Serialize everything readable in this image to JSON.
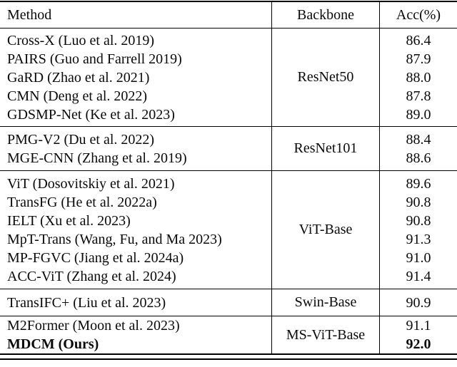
{
  "table": {
    "headers": {
      "method": "Method",
      "backbone": "Backbone",
      "acc": "Acc(%)"
    },
    "sections": [
      {
        "backbone": "ResNet50",
        "rows": [
          {
            "method": "Cross-X (Luo et al. 2019)",
            "acc": "86.4"
          },
          {
            "method": "PAIRS (Guo and Farrell 2019)",
            "acc": "87.9"
          },
          {
            "method": "GaRD (Zhao et al. 2021)",
            "acc": "88.0"
          },
          {
            "method": "CMN (Deng et al. 2022)",
            "acc": "87.8"
          },
          {
            "method": "GDSMP-Net (Ke et al. 2023)",
            "acc": "89.0"
          }
        ]
      },
      {
        "backbone": "ResNet101",
        "rows": [
          {
            "method": "PMG-V2 (Du et al. 2022)",
            "acc": "88.4"
          },
          {
            "method": "MGE-CNN (Zhang et al. 2019)",
            "acc": "88.6"
          }
        ]
      },
      {
        "backbone": "ViT-Base",
        "rows": [
          {
            "method": "ViT (Dosovitskiy et al. 2021)",
            "acc": "89.6"
          },
          {
            "method": "TransFG (He et al. 2022a)",
            "acc": "90.8"
          },
          {
            "method": "IELT (Xu et al. 2023)",
            "acc": "90.8"
          },
          {
            "method": "MpT-Trans (Wang, Fu, and Ma 2023)",
            "acc": "91.3"
          },
          {
            "method": "MP-FGVC (Jiang et al. 2024a)",
            "acc": "91.0"
          },
          {
            "method": "ACC-ViT (Zhang et al. 2024)",
            "acc": "91.4"
          }
        ]
      },
      {
        "backbone": "Swin-Base",
        "rows": [
          {
            "method": "TransIFC+ (Liu et al. 2023)",
            "acc": "90.9"
          }
        ]
      },
      {
        "backbone": "MS-ViT-Base",
        "rows": [
          {
            "method": "M2Former (Moon et al. 2023)",
            "acc": "91.1"
          },
          {
            "method": "MDCM (Ours)",
            "acc": "92.0",
            "bold": true
          }
        ]
      }
    ],
    "colors": {
      "text": "#0a0a0a",
      "rule": "#000000",
      "background": "#ffffff"
    }
  }
}
